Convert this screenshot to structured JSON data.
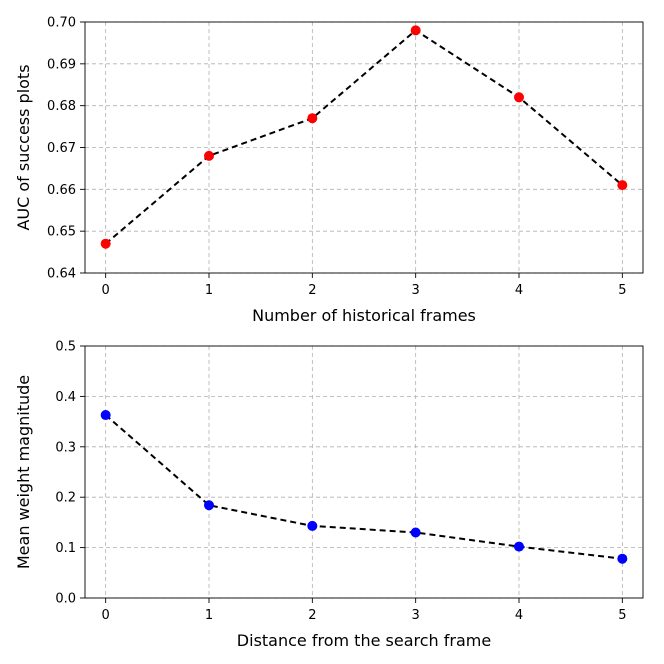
{
  "chart_data": [
    {
      "type": "line",
      "xlabel": "Number of historical frames",
      "ylabel": "AUC of success plots",
      "x": [
        0,
        1,
        2,
        3,
        4,
        5
      ],
      "xticks": [
        "0",
        "1",
        "2",
        "3",
        "4",
        "5"
      ],
      "yticks": [
        "0.64",
        "0.65",
        "0.66",
        "0.67",
        "0.68",
        "0.69",
        "0.70"
      ],
      "xlim": [
        -0.2,
        5.2
      ],
      "ylim": [
        0.64,
        0.7
      ],
      "grid": true,
      "series": [
        {
          "values": [
            0.647,
            0.668,
            0.677,
            0.698,
            0.682,
            0.661
          ],
          "marker_color": "#ff0000",
          "line_color": "#000000",
          "line_style": "dashed"
        }
      ]
    },
    {
      "type": "line",
      "xlabel": "Distance from the search frame",
      "ylabel": "Mean weight magnitude",
      "x": [
        0,
        1,
        2,
        3,
        4,
        5
      ],
      "xticks": [
        "0",
        "1",
        "2",
        "3",
        "4",
        "5"
      ],
      "yticks": [
        "0.0",
        "0.1",
        "0.2",
        "0.3",
        "0.4",
        "0.5"
      ],
      "xlim": [
        -0.2,
        5.2
      ],
      "ylim": [
        0.0,
        0.5
      ],
      "grid": true,
      "series": [
        {
          "values": [
            0.363,
            0.184,
            0.143,
            0.13,
            0.102,
            0.078
          ],
          "marker_color": "#0000ff",
          "line_color": "#000000",
          "line_style": "dashed"
        }
      ]
    }
  ]
}
